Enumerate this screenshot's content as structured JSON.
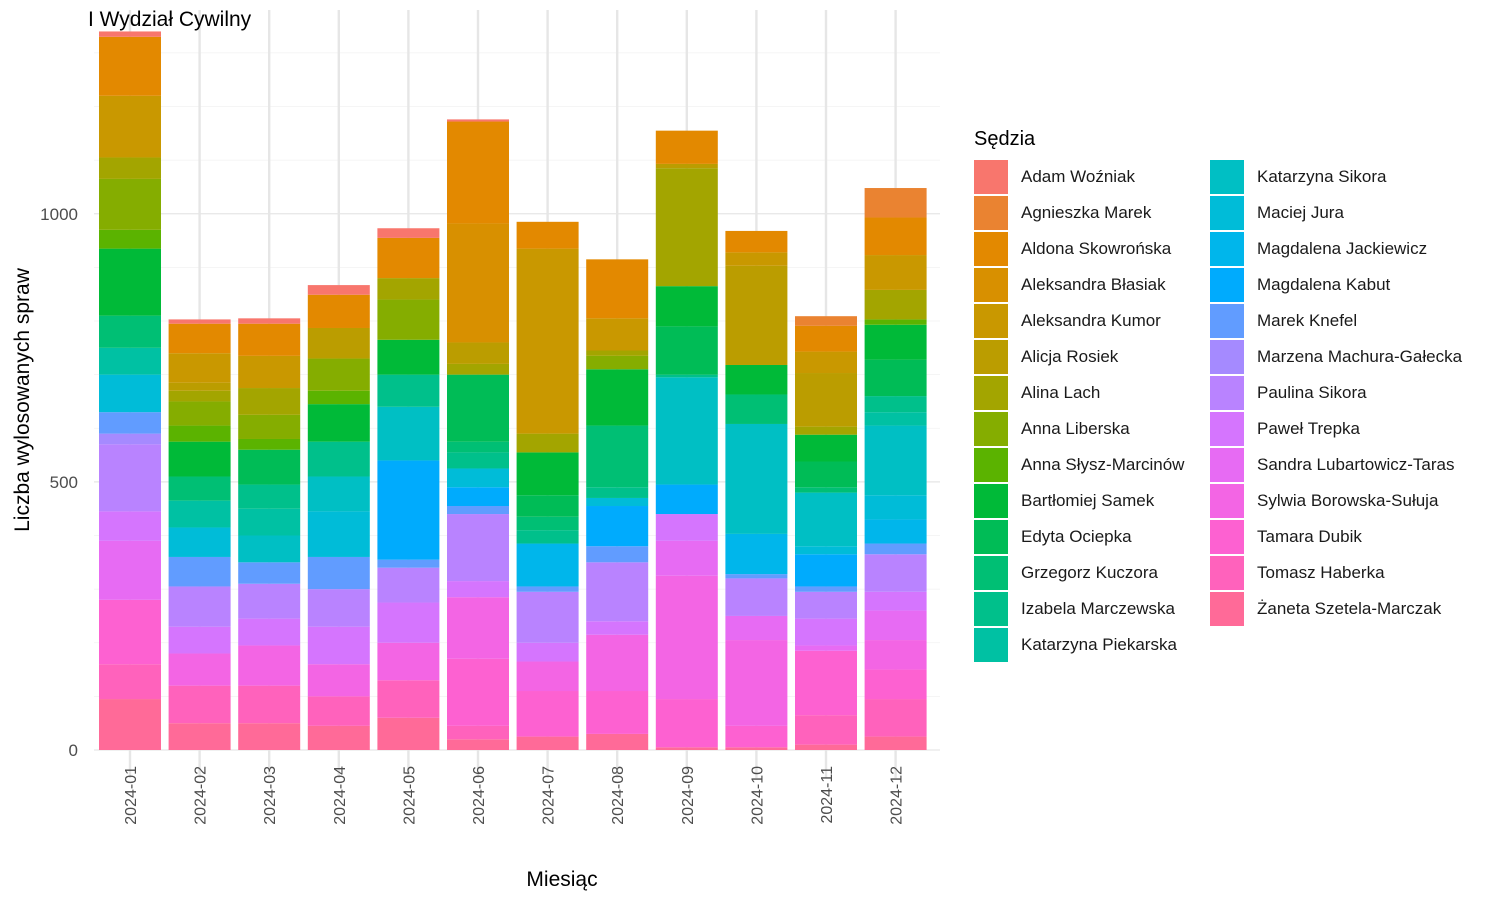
{
  "chart_data": {
    "type": "bar",
    "stacked": true,
    "title": "I Wydział Cywilny",
    "xlabel": "Miesiąc",
    "ylabel": "Liczba wylosowanych spraw",
    "ylim": [
      0,
      1400
    ],
    "yticks": [
      0,
      500,
      1000
    ],
    "grid": true,
    "legend_title": "Sędzia",
    "legend_position": "right",
    "categories": [
      "2024-01",
      "2024-02",
      "2024-03",
      "2024-04",
      "2024-05",
      "2024-06",
      "2024-07",
      "2024-08",
      "2024-09",
      "2024-10",
      "2024-11",
      "2024-12"
    ],
    "series": [
      {
        "name": "Adam Woźniak",
        "color": "#F8766D",
        "values": [
          10,
          8,
          10,
          18,
          18,
          4,
          0,
          0,
          0,
          0,
          0,
          0
        ]
      },
      {
        "name": "Agnieszka Marek",
        "color": "#EA8331",
        "values": [
          0,
          0,
          0,
          0,
          0,
          0,
          0,
          0,
          0,
          0,
          18,
          55
        ]
      },
      {
        "name": "Aldona Skowrońska",
        "color": "#E38900",
        "values": [
          110,
          55,
          60,
          62,
          75,
          190,
          50,
          110,
          62,
          40,
          48,
          70
        ]
      },
      {
        "name": "Aleksandra Błasiak",
        "color": "#D89000",
        "values": [
          0,
          0,
          0,
          0,
          0,
          222,
          0,
          0,
          0,
          0,
          0,
          0
        ]
      },
      {
        "name": "Aleksandra Kumor",
        "color": "#C99800",
        "values": [
          115,
          55,
          60,
          0,
          0,
          0,
          345,
          60,
          0,
          25,
          40,
          65
        ]
      },
      {
        "name": "Alicja Rosiek",
        "color": "#BB9D00",
        "values": [
          0,
          15,
          0,
          57,
          0,
          40,
          0,
          0,
          8,
          185,
          100,
          0
        ]
      },
      {
        "name": "Alina Lach",
        "color": "#A3A500",
        "values": [
          40,
          20,
          50,
          0,
          40,
          20,
          35,
          10,
          220,
          0,
          15,
          55
        ]
      },
      {
        "name": "Anna Liberska",
        "color": "#85AD00",
        "values": [
          95,
          45,
          45,
          60,
          75,
          0,
          0,
          25,
          0,
          0,
          0,
          0
        ]
      },
      {
        "name": "Anna Słysz-Marcinów",
        "color": "#5BB300",
        "values": [
          35,
          30,
          20,
          25,
          0,
          0,
          0,
          0,
          0,
          0,
          0,
          10
        ]
      },
      {
        "name": "Bartłomiej Samek",
        "color": "#00BA38",
        "values": [
          125,
          65,
          0,
          70,
          65,
          0,
          80,
          105,
          75,
          55,
          50,
          65
        ]
      },
      {
        "name": "Edyta Ociepka",
        "color": "#00BC56",
        "values": [
          0,
          0,
          65,
          0,
          0,
          125,
          40,
          0,
          90,
          0,
          48,
          68
        ]
      },
      {
        "name": "Grzegorz Kuczora",
        "color": "#00BF74",
        "values": [
          60,
          45,
          0,
          0,
          0,
          20,
          25,
          115,
          0,
          55,
          10,
          0
        ]
      },
      {
        "name": "Izabela Marczewska",
        "color": "#00C08B",
        "values": [
          0,
          0,
          45,
          65,
          60,
          30,
          25,
          20,
          5,
          0,
          0,
          30
        ]
      },
      {
        "name": "Katarzyna Piekarska",
        "color": "#00C1A3",
        "values": [
          50,
          50,
          50,
          0,
          0,
          0,
          0,
          0,
          0,
          0,
          0,
          25
        ]
      },
      {
        "name": "Katarzyna Sikora",
        "color": "#00BFC4",
        "values": [
          0,
          0,
          50,
          65,
          100,
          0,
          0,
          0,
          200,
          205,
          100,
          130
        ]
      },
      {
        "name": "Maciej Jura",
        "color": "#00BCD8",
        "values": [
          70,
          55,
          0,
          85,
          0,
          35,
          0,
          15,
          0,
          0,
          15,
          45
        ]
      },
      {
        "name": "Magdalena Jackiewicz",
        "color": "#00B6EB",
        "values": [
          0,
          0,
          0,
          0,
          0,
          0,
          80,
          0,
          0,
          75,
          0,
          45
        ]
      },
      {
        "name": "Magdalena Kabut",
        "color": "#00ABFD",
        "values": [
          0,
          0,
          0,
          0,
          185,
          35,
          0,
          75,
          55,
          0,
          60,
          0
        ]
      },
      {
        "name": "Marek Knefel",
        "color": "#619CFF",
        "values": [
          40,
          55,
          40,
          60,
          15,
          15,
          10,
          30,
          0,
          8,
          10,
          20
        ]
      },
      {
        "name": "Marzena Machura-Gałecka",
        "color": "#A58AFF",
        "values": [
          20,
          0,
          0,
          0,
          0,
          0,
          0,
          0,
          0,
          0,
          0,
          0
        ]
      },
      {
        "name": "Paulina Sikora",
        "color": "#B983FF",
        "values": [
          125,
          75,
          65,
          70,
          65,
          125,
          95,
          110,
          0,
          70,
          50,
          70
        ]
      },
      {
        "name": "Paweł Trepka",
        "color": "#D575FE",
        "values": [
          55,
          50,
          50,
          70,
          75,
          30,
          35,
          25,
          50,
          0,
          50,
          35
        ]
      },
      {
        "name": "Sandra Lubartowicz-Taras",
        "color": "#E76BF3",
        "values": [
          110,
          0,
          0,
          0,
          0,
          0,
          0,
          0,
          65,
          45,
          10,
          55
        ]
      },
      {
        "name": "Sylwia Borowska-Sułuja",
        "color": "#F365E4",
        "values": [
          0,
          60,
          75,
          60,
          70,
          115,
          55,
          105,
          230,
          160,
          0,
          55
        ]
      },
      {
        "name": "Tamara Dubik",
        "color": "#FD61D1",
        "values": [
          120,
          0,
          0,
          0,
          0,
          125,
          85,
          80,
          90,
          40,
          120,
          55
        ]
      },
      {
        "name": "Tomasz Haberka",
        "color": "#FF62BC",
        "values": [
          65,
          70,
          70,
          55,
          70,
          25,
          0,
          0,
          0,
          0,
          55,
          70
        ]
      },
      {
        "name": "Żaneta Szetela-Marczak",
        "color": "#FF6A98",
        "values": [
          95,
          50,
          50,
          45,
          60,
          20,
          25,
          30,
          5,
          5,
          10,
          25
        ]
      }
    ]
  }
}
